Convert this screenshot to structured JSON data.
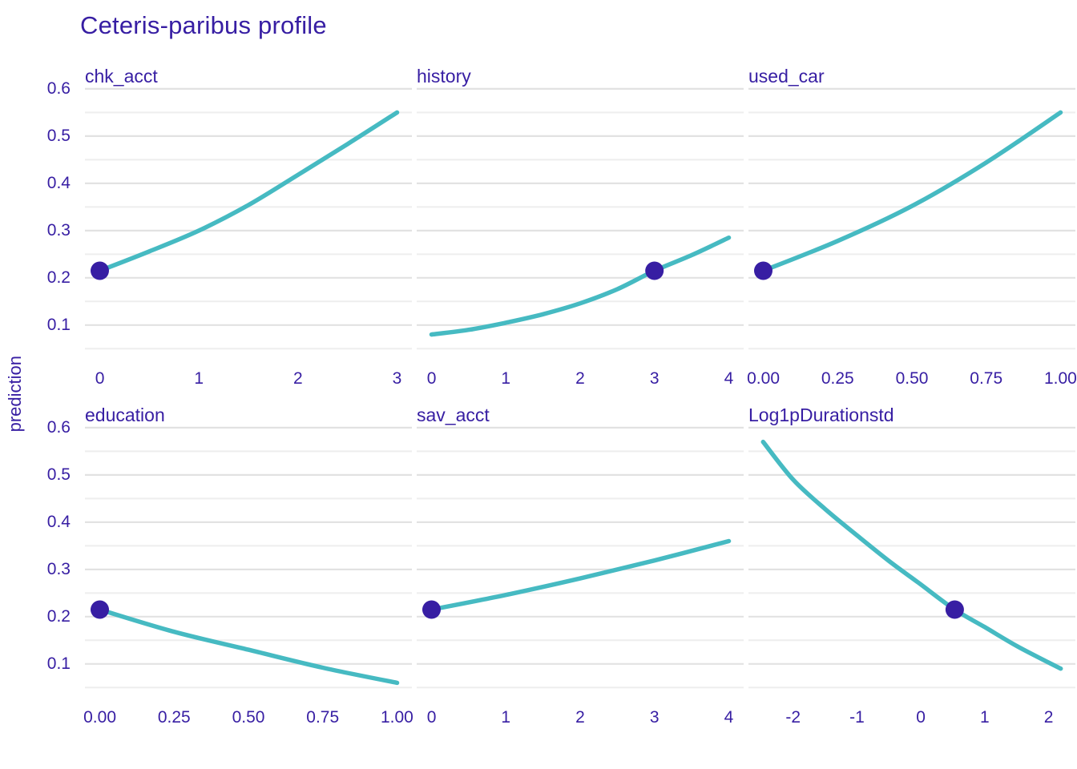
{
  "title": "Ceteris-paribus profile",
  "y_axis_title": "prediction",
  "colors": {
    "title": "#371ea3",
    "axis_text": "#371ea3",
    "facet_label": "#371ea3",
    "line": "#46bac2",
    "point": "#371ea3",
    "grid_major": "#e2e2e2",
    "grid_minor": "#eeeeee",
    "background": "#ffffff"
  },
  "chart_data": {
    "type": "line",
    "title": "Ceteris-paribus profile",
    "ylabel": "prediction",
    "xlabel": "",
    "legend": "none",
    "grid": "horizontal major and minor gridlines, no axis lines",
    "layout": "2 rows x 3 columns of facets, shared y axis",
    "ylim": [
      0.02,
      0.605
    ],
    "yticks": [
      0.1,
      0.2,
      0.3,
      0.4,
      0.5,
      0.6
    ],
    "ytick_labels": [
      "0.1",
      "0.2",
      "0.3",
      "0.4",
      "0.5",
      "0.6"
    ],
    "yticks_minor": [
      0.05,
      0.15,
      0.25,
      0.35,
      0.45,
      0.55
    ],
    "facets": [
      {
        "label": "chk_acct",
        "xlim": [
          -0.15,
          3.15
        ],
        "xticks": [
          0,
          1,
          2,
          3
        ],
        "xtick_labels": [
          "0",
          "1",
          "2",
          "3"
        ],
        "curve": [
          [
            0,
            0.215
          ],
          [
            0.5,
            0.256
          ],
          [
            1,
            0.3
          ],
          [
            1.5,
            0.354
          ],
          [
            2,
            0.418
          ],
          [
            2.5,
            0.483
          ],
          [
            3,
            0.55
          ]
        ],
        "point": {
          "x": 0,
          "y": 0.215
        }
      },
      {
        "label": "history",
        "xlim": [
          -0.2,
          4.2
        ],
        "xticks": [
          0,
          1,
          2,
          3,
          4
        ],
        "xtick_labels": [
          "0",
          "1",
          "2",
          "3",
          "4"
        ],
        "curve": [
          [
            0,
            0.08
          ],
          [
            0.5,
            0.09
          ],
          [
            1,
            0.105
          ],
          [
            1.5,
            0.123
          ],
          [
            2,
            0.146
          ],
          [
            2.5,
            0.176
          ],
          [
            3,
            0.215
          ],
          [
            3.5,
            0.248
          ],
          [
            4,
            0.285
          ]
        ],
        "point": {
          "x": 3,
          "y": 0.215
        }
      },
      {
        "label": "used_car",
        "xlim": [
          -0.05,
          1.05
        ],
        "xticks": [
          0,
          0.25,
          0.5,
          0.75,
          1
        ],
        "xtick_labels": [
          "0.00",
          "0.25",
          "0.50",
          "0.75",
          "1.00"
        ],
        "curve": [
          [
            0,
            0.215
          ],
          [
            0.25,
            0.278
          ],
          [
            0.5,
            0.352
          ],
          [
            0.75,
            0.444
          ],
          [
            1,
            0.55
          ]
        ],
        "point": {
          "x": 0,
          "y": 0.215
        }
      },
      {
        "label": "education",
        "xlim": [
          -0.05,
          1.05
        ],
        "xticks": [
          0,
          0.25,
          0.5,
          0.75,
          1
        ],
        "xtick_labels": [
          "0.00",
          "0.25",
          "0.50",
          "0.75",
          "1.00"
        ],
        "curve": [
          [
            0,
            0.215
          ],
          [
            0.25,
            0.168
          ],
          [
            0.5,
            0.13
          ],
          [
            0.75,
            0.092
          ],
          [
            1,
            0.06
          ]
        ],
        "point": {
          "x": 0,
          "y": 0.215
        }
      },
      {
        "label": "sav_acct",
        "xlim": [
          -0.2,
          4.2
        ],
        "xticks": [
          0,
          1,
          2,
          3,
          4
        ],
        "xtick_labels": [
          "0",
          "1",
          "2",
          "3",
          "4"
        ],
        "curve": [
          [
            0,
            0.215
          ],
          [
            1,
            0.246
          ],
          [
            2,
            0.281
          ],
          [
            3,
            0.319
          ],
          [
            4,
            0.36
          ]
        ],
        "point": {
          "x": 0,
          "y": 0.215
        }
      },
      {
        "label": "Log1pDurationstd",
        "xlim": [
          -2.7,
          2.42
        ],
        "xticks": [
          -2,
          -1,
          0,
          1,
          2
        ],
        "xtick_labels": [
          "-2",
          "-1",
          "0",
          "1",
          "2"
        ],
        "curve": [
          [
            -2.47,
            0.57
          ],
          [
            -2,
            0.49
          ],
          [
            -1.5,
            0.428
          ],
          [
            -1,
            0.372
          ],
          [
            -0.5,
            0.318
          ],
          [
            0,
            0.268
          ],
          [
            0.53,
            0.215
          ],
          [
            1,
            0.178
          ],
          [
            1.5,
            0.138
          ],
          [
            2,
            0.103
          ],
          [
            2.19,
            0.09
          ]
        ],
        "point": {
          "x": 0.53,
          "y": 0.215
        }
      }
    ]
  }
}
